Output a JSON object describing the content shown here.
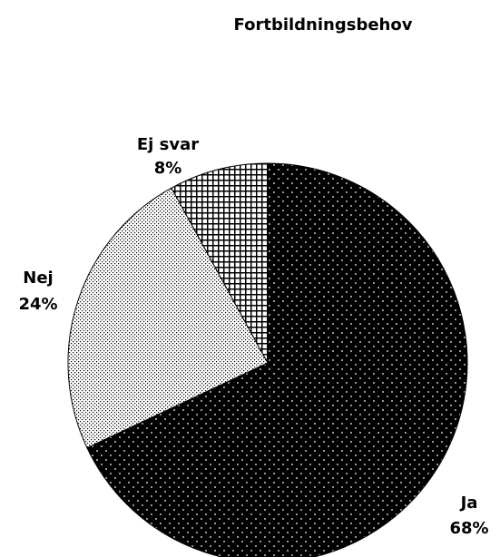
{
  "chart_data": {
    "type": "pie",
    "title": "Fortbildningsbehov",
    "categories": [
      "Ja",
      "Nej",
      "Ej svar"
    ],
    "values": [
      68,
      24,
      8
    ],
    "value_labels": [
      "68%",
      "24%",
      "8%"
    ]
  }
}
